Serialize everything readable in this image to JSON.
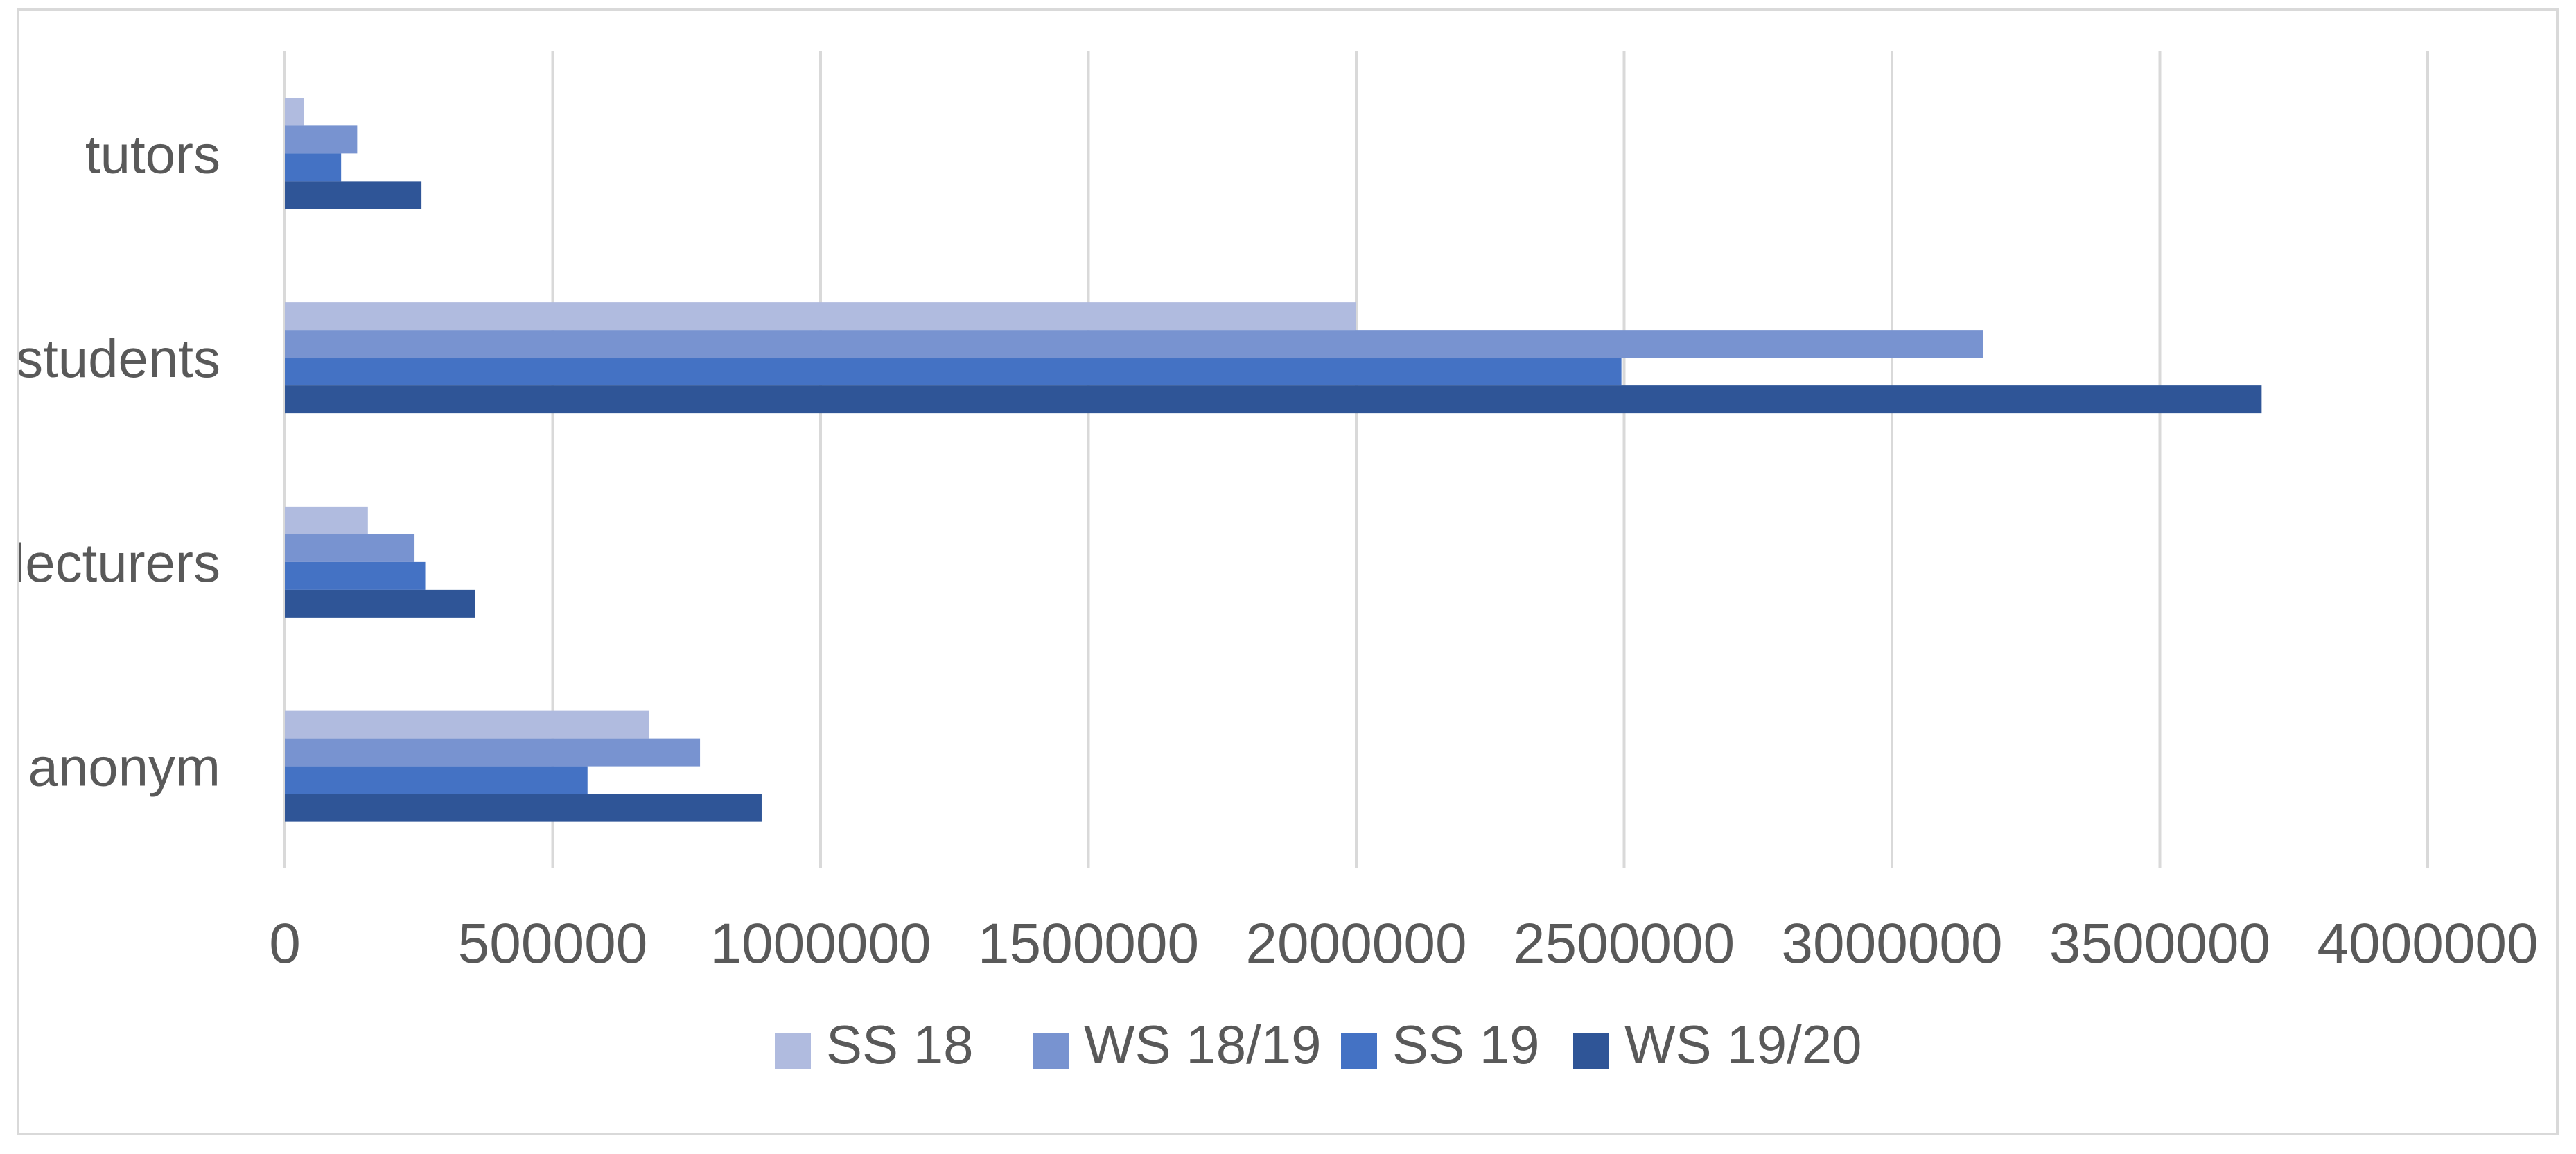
{
  "chart_data": {
    "type": "bar",
    "orientation": "horizontal",
    "title": "",
    "xlabel": "",
    "ylabel": "",
    "categories": [
      "anonym",
      "lecturers",
      "students",
      "tutors"
    ],
    "series": [
      {
        "name": "SS  18",
        "color": "#b0bbdf",
        "values": [
          680000,
          155000,
          2000000,
          35000
        ]
      },
      {
        "name": "WS 18/19",
        "color": "#7893d0",
        "values": [
          775000,
          242000,
          3170000,
          135000
        ]
      },
      {
        "name": "SS 19",
        "color": "#4472c4",
        "values": [
          565000,
          262000,
          2495000,
          105000
        ]
      },
      {
        "name": "WS 19/20",
        "color": "#2f5597",
        "values": [
          890000,
          355000,
          3690000,
          255000
        ]
      }
    ],
    "xlim": [
      0,
      4000000
    ],
    "xticks": [
      "0",
      "500000",
      "1000000",
      "1500000",
      "2000000",
      "2500000",
      "3000000",
      "3500000",
      "4000000"
    ],
    "grid": "vertical",
    "legend_position": "bottom"
  }
}
